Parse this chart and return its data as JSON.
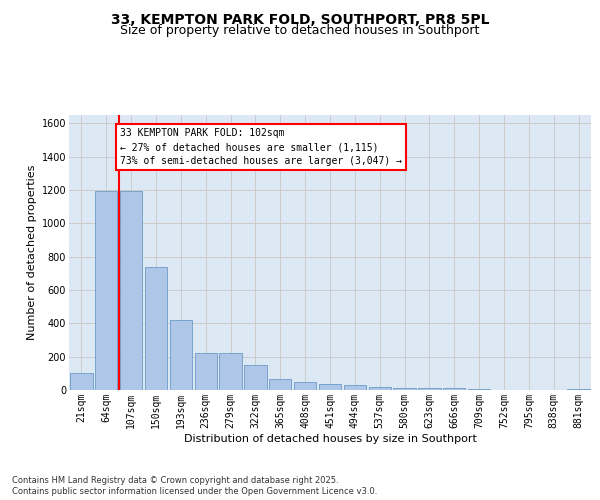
{
  "title_line1": "33, KEMPTON PARK FOLD, SOUTHPORT, PR8 5PL",
  "title_line2": "Size of property relative to detached houses in Southport",
  "xlabel": "Distribution of detached houses by size in Southport",
  "ylabel": "Number of detached properties",
  "categories": [
    "21sqm",
    "64sqm",
    "107sqm",
    "150sqm",
    "193sqm",
    "236sqm",
    "279sqm",
    "322sqm",
    "365sqm",
    "408sqm",
    "451sqm",
    "494sqm",
    "537sqm",
    "580sqm",
    "623sqm",
    "666sqm",
    "709sqm",
    "752sqm",
    "795sqm",
    "838sqm",
    "881sqm"
  ],
  "values": [
    105,
    1195,
    1195,
    740,
    420,
    225,
    220,
    150,
    68,
    50,
    38,
    30,
    18,
    15,
    12,
    10,
    5,
    0,
    0,
    0,
    5
  ],
  "bar_color": "#aec6e8",
  "bar_edge_color": "#5a8fc0",
  "grid_color": "#cccccc",
  "background_color": "#dce9f5",
  "vline_color": "red",
  "annotation_text": "33 KEMPTON PARK FOLD: 102sqm\n← 27% of detached houses are smaller (1,115)\n73% of semi-detached houses are larger (3,047) →",
  "ylim": [
    0,
    1650
  ],
  "yticks": [
    0,
    200,
    400,
    600,
    800,
    1000,
    1200,
    1400,
    1600
  ],
  "footer_line1": "Contains HM Land Registry data © Crown copyright and database right 2025.",
  "footer_line2": "Contains public sector information licensed under the Open Government Licence v3.0.",
  "title_fontsize": 10,
  "subtitle_fontsize": 9,
  "axis_label_fontsize": 8,
  "tick_fontsize": 7,
  "annotation_fontsize": 7,
  "footer_fontsize": 6
}
